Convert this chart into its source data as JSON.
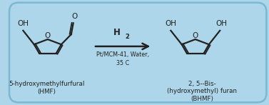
{
  "bg_color": "#aed6ea",
  "border_color": "#7ab8d4",
  "line_color": "#222222",
  "text_color": "#222222",
  "arrow_color": "#222222",
  "hmf_label1": "5-hydroxymethylfurfural",
  "hmf_label2": "(HMF)",
  "bhmf_label1": "2, 5--Bis-",
  "bhmf_label2": "(hydroxymethyl) furan",
  "bhmf_label3": "(BHMF)",
  "h2_text": "H",
  "h2_sub": "2",
  "cond1": "Pt/MCM-41, Water,",
  "cond2": "35 C",
  "figwidth": 3.77,
  "figheight": 1.47,
  "dpi": 100
}
